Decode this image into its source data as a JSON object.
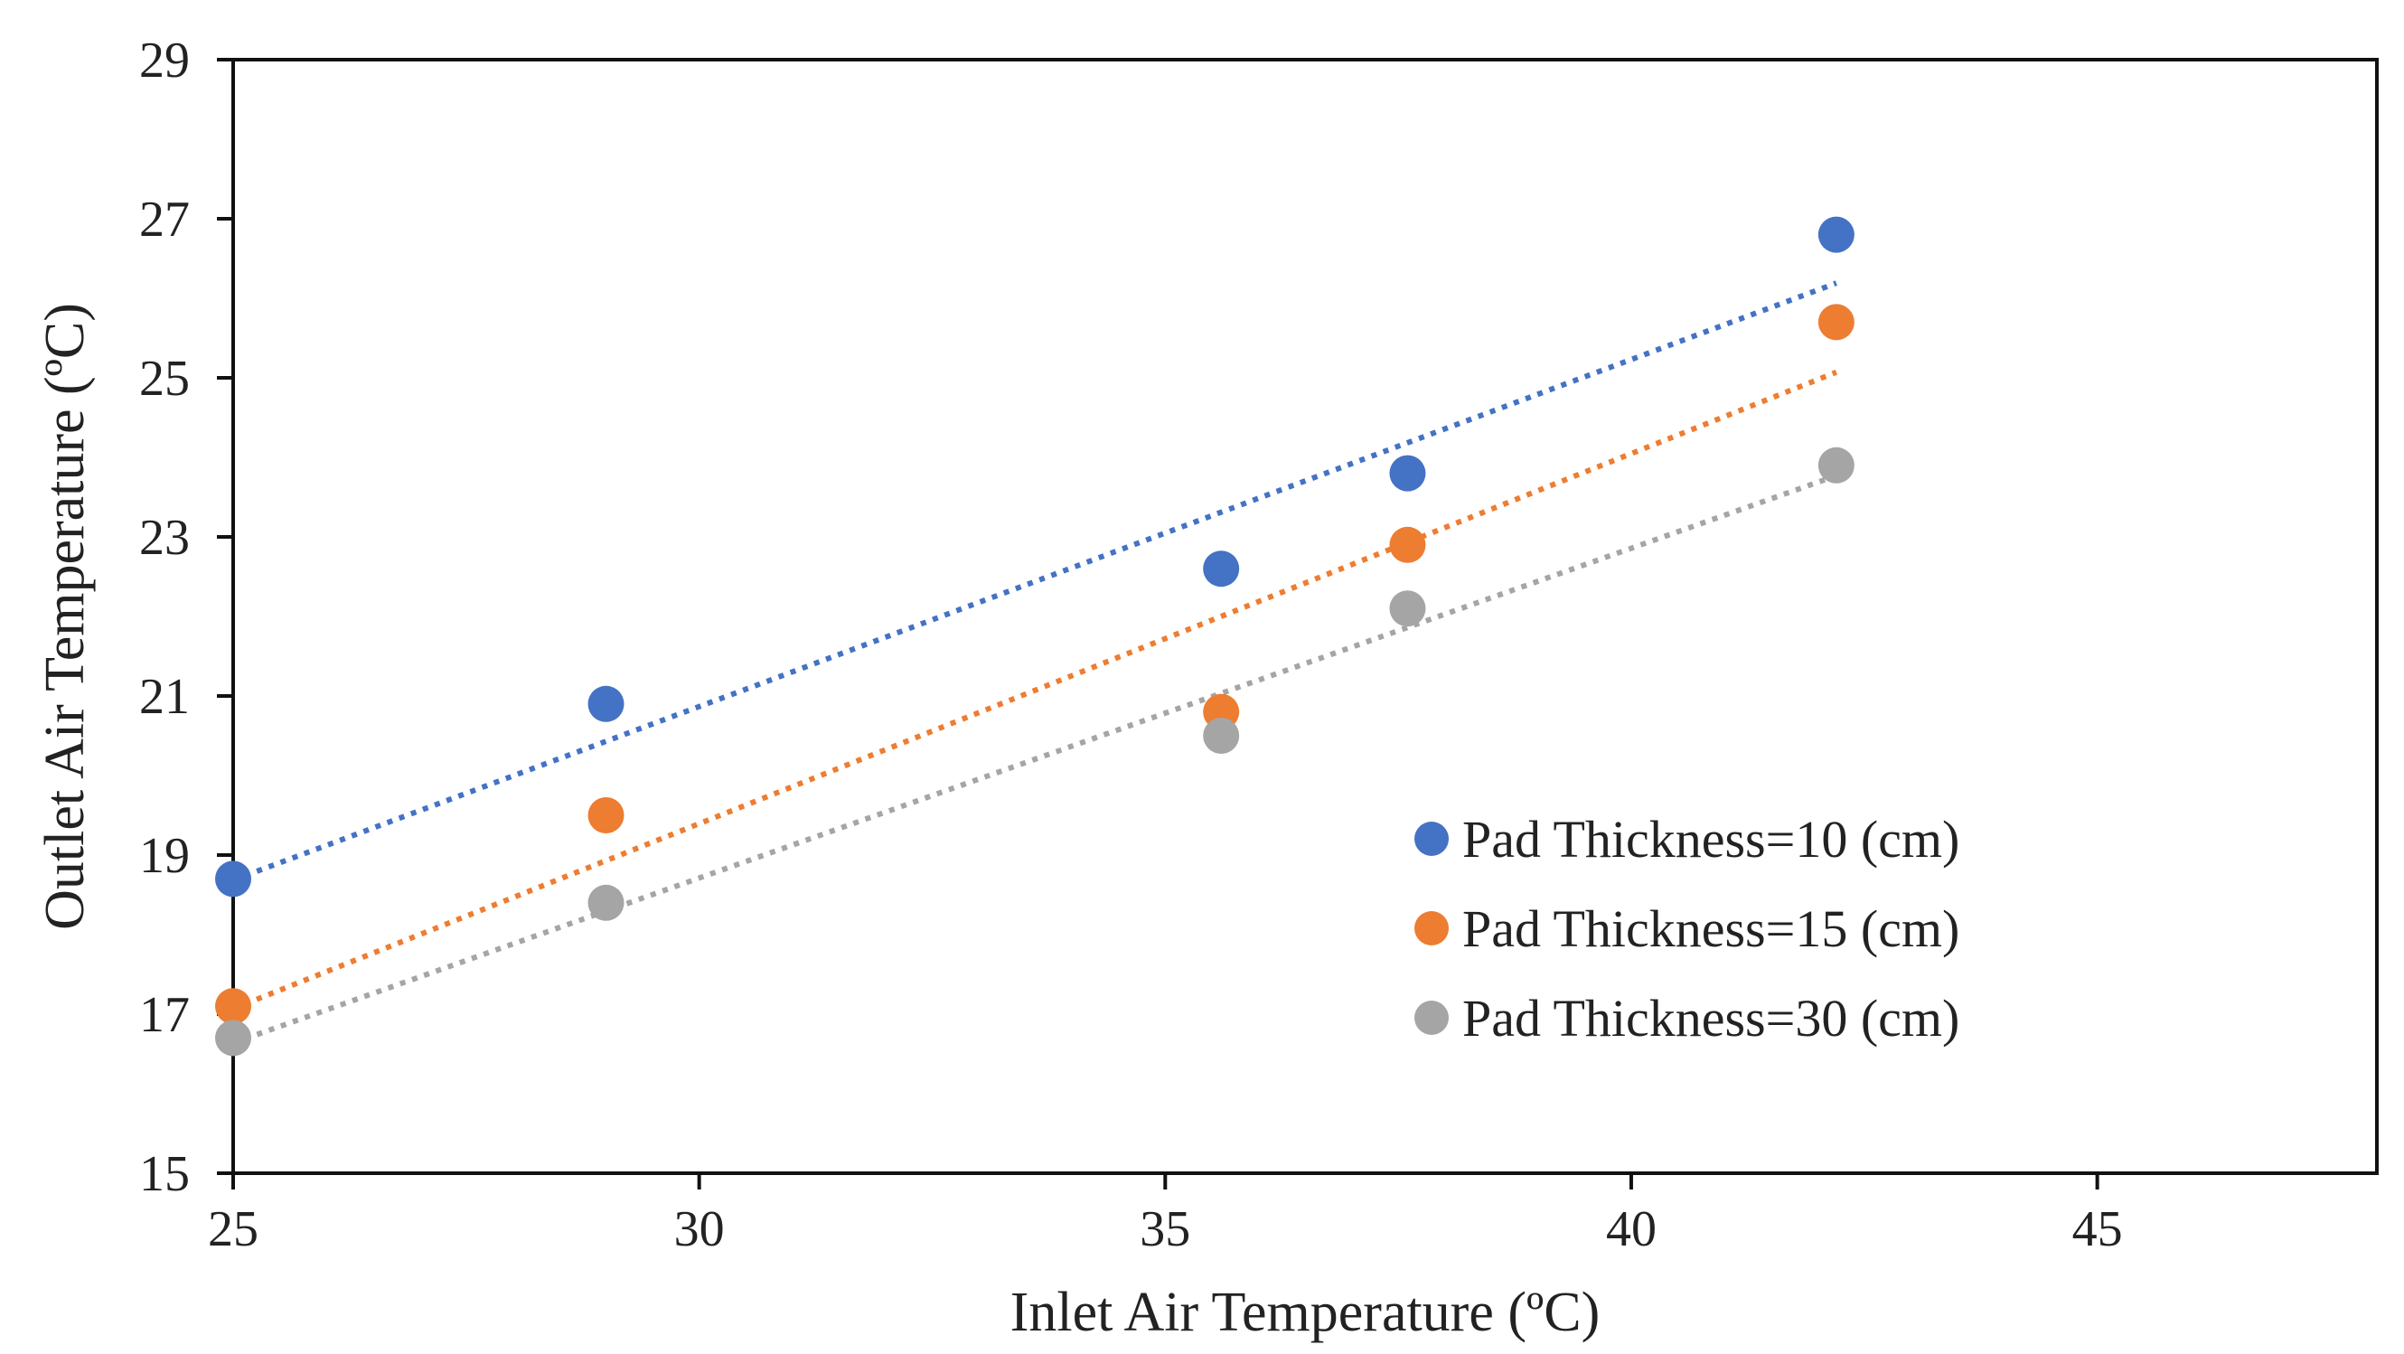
{
  "chart_data": {
    "type": "scatter",
    "title": "",
    "xlabel": "Inlet Air Temperature (ºC)",
    "ylabel": "Outlet Air Temperature (ºC)",
    "xlim": [
      25,
      48
    ],
    "ylim": [
      15,
      29
    ],
    "xticks": [
      25,
      30,
      35,
      40,
      45
    ],
    "yticks": [
      15,
      17,
      19,
      21,
      23,
      25,
      27,
      29
    ],
    "grid": false,
    "legend_position": "right",
    "trendline": "linear (dotted)",
    "series": [
      {
        "name": "Pad Thickness=10 (cm)",
        "color": "#4472C4",
        "x": [
          25.0,
          29.0,
          35.6,
          37.6,
          42.2
        ],
        "y": [
          18.7,
          20.9,
          22.6,
          23.8,
          26.8
        ]
      },
      {
        "name": "Pad Thickness=15 (cm)",
        "color": "#ED7D31",
        "x": [
          25.0,
          29.0,
          35.6,
          37.6,
          42.2
        ],
        "y": [
          17.1,
          19.5,
          20.8,
          22.9,
          25.7
        ]
      },
      {
        "name": "Pad Thickness=30 (cm)",
        "color": "#A5A5A5",
        "x": [
          25.0,
          29.0,
          35.6,
          37.6,
          42.2
        ],
        "y": [
          16.7,
          18.4,
          20.5,
          22.1,
          23.9
        ]
      }
    ]
  }
}
